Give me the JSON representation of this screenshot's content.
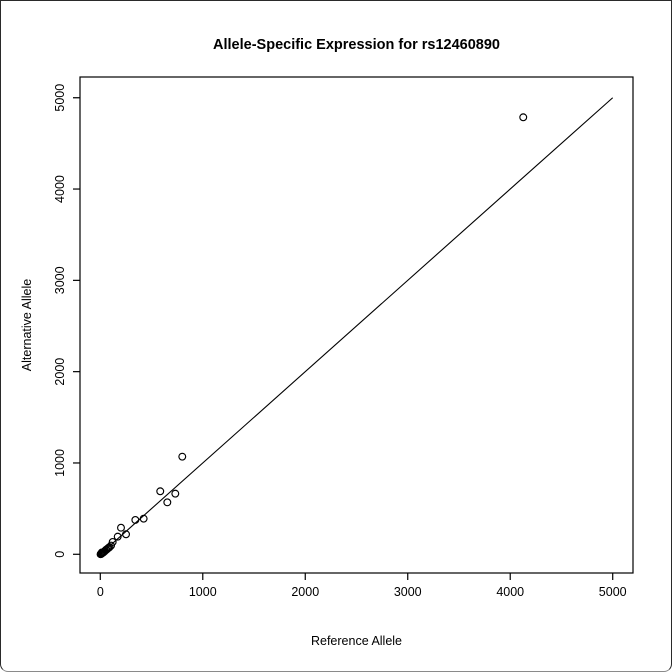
{
  "window": {
    "background": "#ffffff",
    "border_color": "#2a2a2a"
  },
  "chart_data": {
    "type": "scatter",
    "title": "Allele-Specific Expression for rs12460890",
    "xlabel": "Reference Allele",
    "ylabel": "Alternative Allele",
    "xlim": [
      -198,
      5198
    ],
    "ylim": [
      -205,
      5227
    ],
    "xticks": [
      0,
      1000,
      2000,
      3000,
      4000,
      5000
    ],
    "yticks": [
      0,
      1000,
      2000,
      3000,
      4000,
      5000
    ],
    "grid": false,
    "legend": null,
    "marker": "open-circle",
    "colors": {
      "marker": "#000000",
      "line": "#000000",
      "axis": "#000000",
      "background": "#ffffff"
    },
    "identity_line": {
      "x1": 0,
      "y1": 0,
      "x2": 5000,
      "y2": 5000
    },
    "points": [
      [
        4127,
        4786
      ],
      [
        800,
        1069
      ],
      [
        732,
        664
      ],
      [
        654,
        569
      ],
      [
        585,
        690
      ],
      [
        423,
        390
      ],
      [
        342,
        376
      ],
      [
        251,
        219
      ],
      [
        202,
        291
      ],
      [
        170,
        193
      ],
      [
        121,
        135
      ],
      [
        105,
        95
      ],
      [
        90,
        78
      ],
      [
        80,
        70
      ],
      [
        72,
        62
      ],
      [
        60,
        50
      ],
      [
        55,
        48
      ],
      [
        45,
        36
      ],
      [
        38,
        28
      ],
      [
        30,
        22
      ],
      [
        24,
        16
      ],
      [
        18,
        12
      ],
      [
        15,
        20
      ],
      [
        12,
        8
      ],
      [
        8,
        4
      ],
      [
        5,
        2
      ],
      [
        3,
        1
      ]
    ]
  }
}
